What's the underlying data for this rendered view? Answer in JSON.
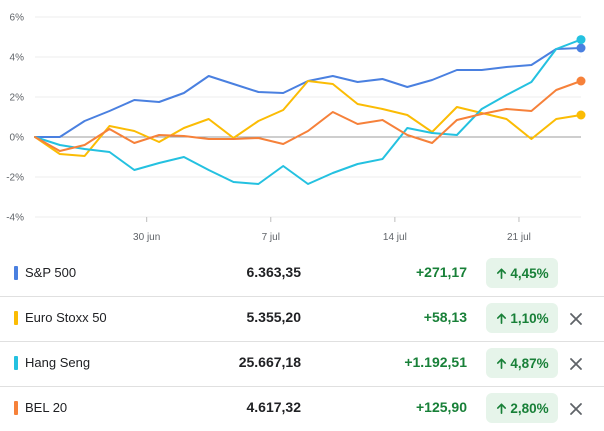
{
  "chart_data": {
    "type": "line",
    "yticks": [
      "6%",
      "4%",
      "2%",
      "0%",
      "-2%",
      "-4%"
    ],
    "ylim": [
      -4,
      6
    ],
    "xticks": [
      "30 jun",
      "7 jul",
      "14 jul",
      "21 jul"
    ],
    "xlim": [
      0,
      22
    ],
    "xtick_pos": [
      4.5,
      9.5,
      14.5,
      19.5
    ],
    "baseline": 0,
    "series": [
      {
        "name": "S&P 500",
        "color": "#4a80e0",
        "values": [
          0,
          0,
          0.8,
          1.3,
          1.85,
          1.75,
          2.2,
          3.05,
          2.65,
          2.25,
          2.2,
          2.8,
          3.05,
          2.75,
          2.9,
          2.5,
          2.85,
          3.35,
          3.35,
          3.5,
          3.6,
          4.4,
          4.45
        ]
      },
      {
        "name": "Euro Stoxx 50",
        "color": "#fbbc04",
        "values": [
          0,
          -0.85,
          -0.95,
          0.55,
          0.3,
          -0.25,
          0.45,
          0.9,
          -0.05,
          0.8,
          1.35,
          2.8,
          2.65,
          1.65,
          1.4,
          1.1,
          0.25,
          1.5,
          1.2,
          0.9,
          -0.1,
          0.9,
          1.1
        ]
      },
      {
        "name": "Hang Seng",
        "color": "#24c1e0",
        "values": [
          0,
          -0.4,
          -0.6,
          -0.75,
          -1.65,
          -1.3,
          -1.0,
          -1.65,
          -2.25,
          -2.35,
          -1.45,
          -2.35,
          -1.8,
          -1.35,
          -1.1,
          0.45,
          0.2,
          0.1,
          1.4,
          2.1,
          2.75,
          4.4,
          4.87
        ]
      },
      {
        "name": "BEL 20",
        "color": "#f6813a",
        "values": [
          0,
          -0.7,
          -0.4,
          0.4,
          -0.3,
          0.1,
          0.05,
          -0.1,
          -0.1,
          -0.05,
          -0.35,
          0.3,
          1.25,
          0.65,
          0.85,
          0.1,
          -0.3,
          0.85,
          1.15,
          1.4,
          1.3,
          2.35,
          2.8
        ]
      }
    ]
  },
  "rows": [
    {
      "name": "S&P 500",
      "color": "#4a80e0",
      "price": "6.363,35",
      "change": "+271,17",
      "percent": "4,45%",
      "removable": false
    },
    {
      "name": "Euro Stoxx 50",
      "color": "#fbbc04",
      "price": "5.355,20",
      "change": "+58,13",
      "percent": "1,10%",
      "removable": true
    },
    {
      "name": "Hang Seng",
      "color": "#24c1e0",
      "price": "25.667,18",
      "change": "+1.192,51",
      "percent": "4,87%",
      "removable": true
    },
    {
      "name": "BEL 20",
      "color": "#f6813a",
      "price": "4.617,32",
      "change": "+125,90",
      "percent": "2,80%",
      "removable": true
    }
  ]
}
